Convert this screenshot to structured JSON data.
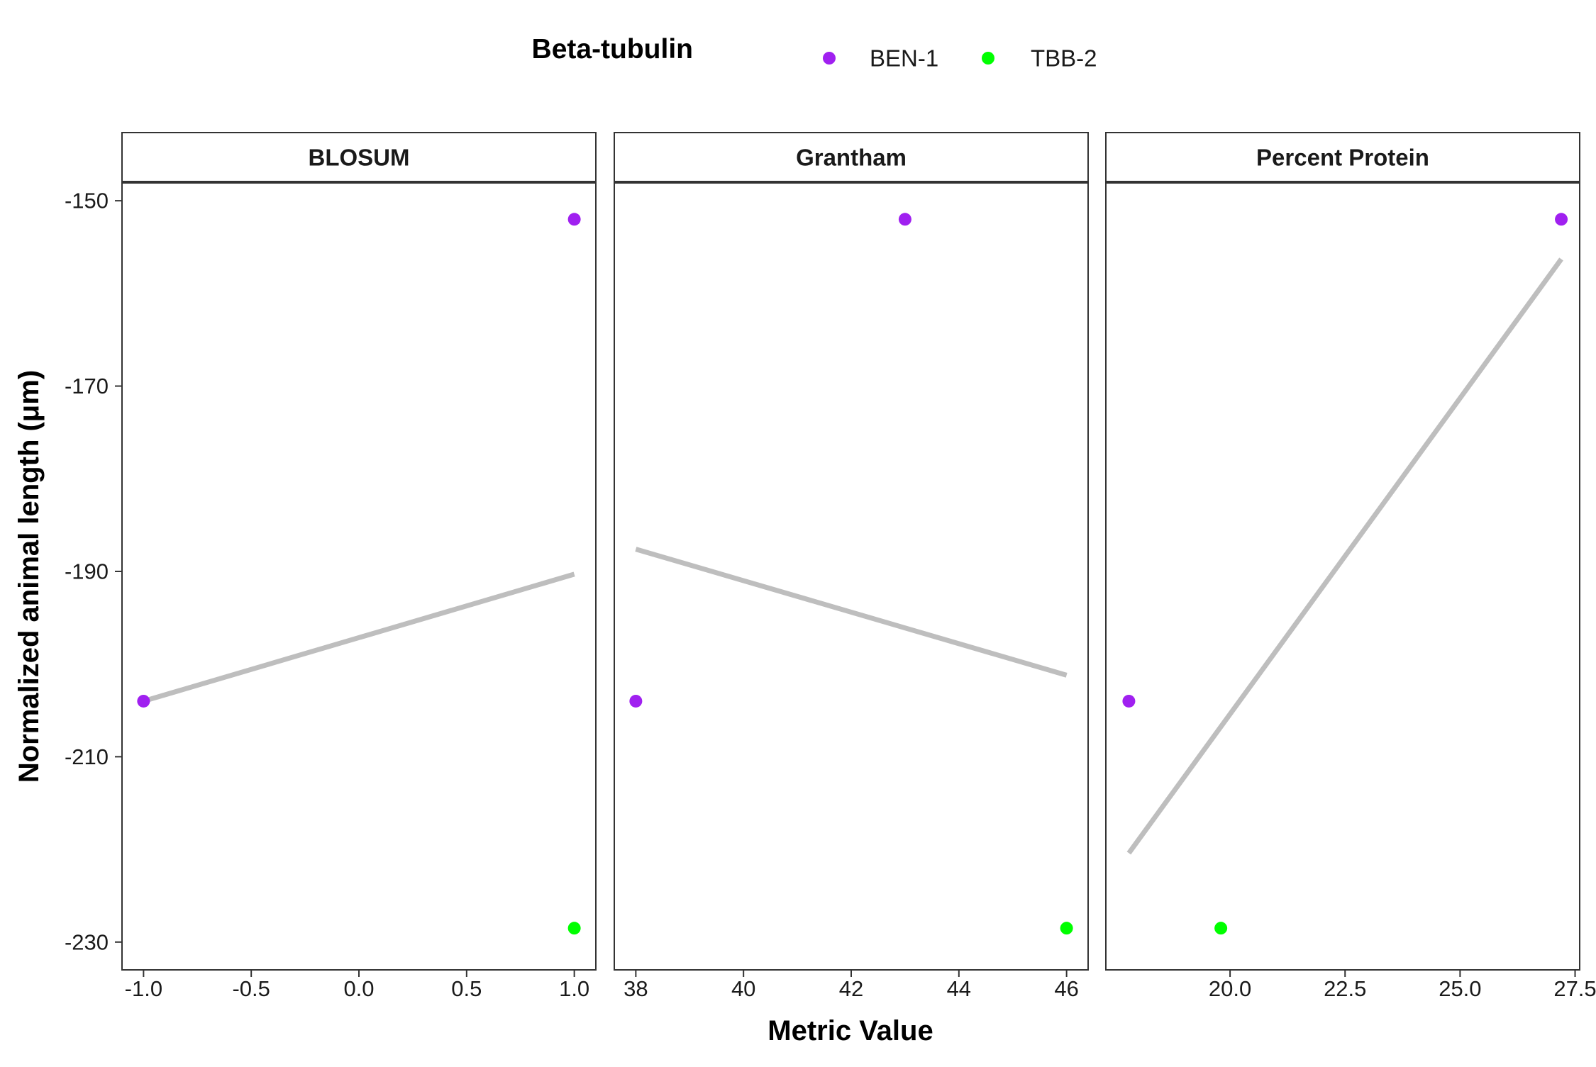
{
  "chart_data": {
    "type": "scatter",
    "title": "",
    "xlabel": "Metric Value",
    "ylabel": "Normalized animal length (μm)",
    "ylim": [
      -233,
      -148
    ],
    "y_ticks": [
      -150,
      -170,
      -190,
      -210,
      -230
    ],
    "legend": {
      "title": "Beta-tubulin",
      "position": "top",
      "entries": [
        {
          "name": "BEN-1",
          "color": "#A020F0"
        },
        {
          "name": "TBB-2",
          "color": "#00FF00"
        }
      ]
    },
    "trend_color": "#BEBEBE",
    "panels": [
      {
        "title": "BLOSUM",
        "xlim": [
          -1.1,
          1.1
        ],
        "x_ticks": [
          -1.0,
          -0.5,
          0.0,
          0.5,
          1.0
        ],
        "x_tick_labels": [
          "-1.0",
          "-0.5",
          "0.0",
          "0.5",
          "1.0"
        ],
        "points": [
          {
            "series": "BEN-1",
            "x": -1.0,
            "y": -204
          },
          {
            "series": "BEN-1",
            "x": 1.0,
            "y": -152
          },
          {
            "series": "TBB-2",
            "x": 1.0,
            "y": -228.5
          }
        ],
        "trend": {
          "x": [
            -1.0,
            1.0
          ],
          "y": [
            -204,
            -190.3
          ]
        }
      },
      {
        "title": "Grantham",
        "xlim": [
          37.6,
          46.4
        ],
        "x_ticks": [
          38,
          40,
          42,
          44,
          46
        ],
        "x_tick_labels": [
          "38",
          "40",
          "42",
          "44",
          "46"
        ],
        "points": [
          {
            "series": "BEN-1",
            "x": 38,
            "y": -204
          },
          {
            "series": "BEN-1",
            "x": 43,
            "y": -152
          },
          {
            "series": "TBB-2",
            "x": 46,
            "y": -228.5
          }
        ],
        "trend": {
          "x": [
            38,
            46
          ],
          "y": [
            -187.6,
            -201.2
          ]
        }
      },
      {
        "title": "Percent Protein",
        "xlim": [
          17.3,
          27.6
        ],
        "x_ticks": [
          20.0,
          22.5,
          25.0,
          27.5
        ],
        "x_tick_labels": [
          "20.0",
          "22.5",
          "25.0",
          "27.5"
        ],
        "points": [
          {
            "series": "BEN-1",
            "x": 17.8,
            "y": -204
          },
          {
            "series": "BEN-1",
            "x": 27.2,
            "y": -152
          },
          {
            "series": "TBB-2",
            "x": 19.8,
            "y": -228.5
          }
        ],
        "trend": {
          "x": [
            17.8,
            27.2
          ],
          "y": [
            -220.4,
            -156.3
          ]
        }
      }
    ]
  }
}
